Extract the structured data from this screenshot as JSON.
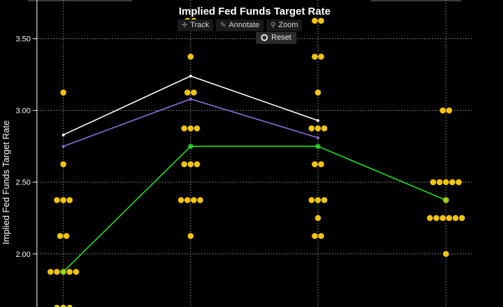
{
  "toolbar": {
    "track": "Track",
    "annotate": "Annotate",
    "zoom": "Zoom",
    "reset": "Reset"
  },
  "chart_data": {
    "type": "scatter",
    "title": "Implied Fed Funds Target Rate",
    "ylabel": "Implied Fed Funds Target Rate",
    "xlabel": "",
    "ylim": [
      1.63,
      3.77
    ],
    "yticks": [
      2.0,
      2.5,
      3.0,
      3.5
    ],
    "ytick_labels": [
      "2.00",
      "2.50",
      "3.00",
      "3.50"
    ],
    "grid": true,
    "x_positions": 4,
    "x_tick_labels": [],
    "dot_color": "#f2c40f",
    "dots": [
      {
        "x": 1,
        "y": [
          3.125,
          2.625,
          2.375,
          2.375,
          2.375,
          2.125,
          2.125,
          1.875,
          1.875,
          1.875,
          1.875,
          1.875,
          1.625,
          1.625,
          1.625
        ]
      },
      {
        "x": 2,
        "y": [
          3.625,
          3.625,
          3.375,
          3.125,
          3.125,
          2.875,
          2.875,
          2.875,
          2.625,
          2.625,
          2.625,
          2.375,
          2.375,
          2.375,
          2.375,
          2.125
        ]
      },
      {
        "x": 3,
        "y": [
          3.625,
          3.625,
          3.375,
          3.375,
          3.125,
          2.875,
          2.875,
          2.875,
          2.625,
          2.625,
          2.375,
          2.375,
          2.375,
          2.25,
          2.125,
          2.125
        ]
      },
      {
        "x": 4,
        "y": [
          3.0,
          3.0,
          2.5,
          2.5,
          2.5,
          2.5,
          2.5,
          2.375,
          2.25,
          2.25,
          2.25,
          2.25,
          2.25,
          2.25,
          2.0
        ]
      }
    ],
    "series": [
      {
        "color": "#ffffff",
        "values": [
          2.83,
          3.24,
          2.93
        ]
      },
      {
        "color": "#9370db",
        "values": [
          2.75,
          3.08,
          2.81
        ]
      },
      {
        "color": "#22e022",
        "values": [
          1.875,
          2.75,
          2.75,
          2.375
        ]
      }
    ]
  }
}
